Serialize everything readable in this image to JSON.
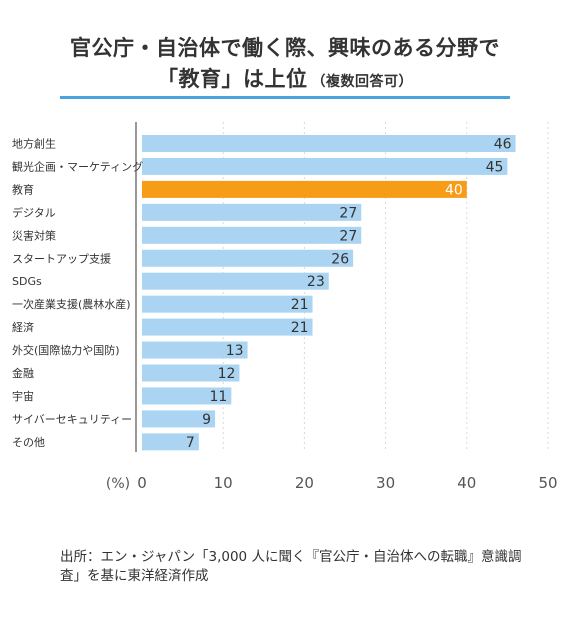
{
  "title": {
    "line1": "官公庁・自治体で働く際、興味のある分野で",
    "line2_main": "「教育」は上位",
    "line2_sub": "（複数回答可）"
  },
  "source_text": "出所：エン・ジャパン「3,000 人に聞く『官公庁・自治体への転職』意識調査」を基に東洋経済作成",
  "colors": {
    "bar": "#abd4f2",
    "highlight": "#f79c16",
    "rule": "#4aa2de",
    "axis": "#555555",
    "grid": "#d9d9d9",
    "value_on_highlight": "#ffffff",
    "value": "#333333"
  },
  "chart_data": {
    "type": "bar",
    "orientation": "horizontal",
    "categories": [
      "地方創生",
      "観光企画・マーケティング",
      "教育",
      "デジタル",
      "災害対策",
      "スタートアップ支援",
      "SDGs",
      "一次産業支援(農林水産)",
      "経済",
      "外交(国際協力や国防)",
      "金融",
      "宇宙",
      "サイバーセキュリティー",
      "その他"
    ],
    "values": [
      46,
      45,
      40,
      27,
      27,
      26,
      23,
      21,
      21,
      13,
      12,
      11,
      9,
      7
    ],
    "highlight_category": "教育",
    "xlim": [
      0,
      50
    ],
    "xticks": [
      0,
      10,
      20,
      30,
      40,
      50
    ],
    "unit_label": "(%)",
    "grid": true,
    "grid_style": "dashed vertical"
  }
}
